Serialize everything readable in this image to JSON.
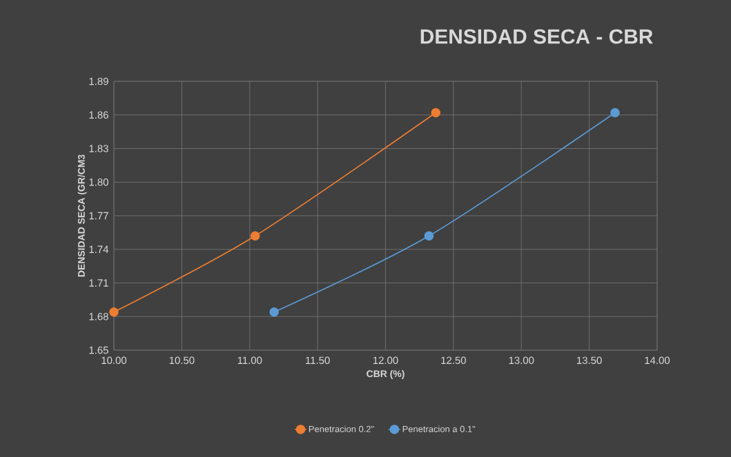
{
  "chart_data": {
    "type": "line",
    "title": "DENSIDAD SECA - CBR",
    "xlabel": "CBR  (%)",
    "ylabel": "DENSIDAD SECA  (GR/CM3",
    "series": [
      {
        "name": "Penetracion 0.2\"",
        "color": "#ed7d31",
        "x": [
          10.0,
          11.04,
          12.37
        ],
        "values": [
          1.684,
          1.752,
          1.862
        ]
      },
      {
        "name": "Penetracion a 0.1\"",
        "color": "#5b9bd5",
        "x": [
          11.18,
          12.32,
          13.69
        ],
        "values": [
          1.684,
          1.752,
          1.862
        ]
      }
    ],
    "xlim": [
      10,
      14
    ],
    "ylim": [
      1.65,
      1.89
    ],
    "xticks": [
      {
        "value": 10,
        "label": "10.00"
      },
      {
        "value": 10.5,
        "label": "10.50"
      },
      {
        "value": 11,
        "label": "11.00"
      },
      {
        "value": 11.5,
        "label": "11.50"
      },
      {
        "value": 12,
        "label": "12.00"
      },
      {
        "value": 12.5,
        "label": "12.50"
      },
      {
        "value": 13,
        "label": "13.00"
      },
      {
        "value": 13.5,
        "label": "13.50"
      },
      {
        "value": 14,
        "label": "14.00"
      }
    ],
    "yticks": [
      1.65,
      1.68,
      1.71,
      1.74,
      1.77,
      {
        "value": 1.8,
        "label": "1.80"
      },
      1.83,
      1.86,
      1.89
    ],
    "grid": true,
    "legend": "bottom",
    "marker": "circle",
    "line_style": "solid"
  }
}
